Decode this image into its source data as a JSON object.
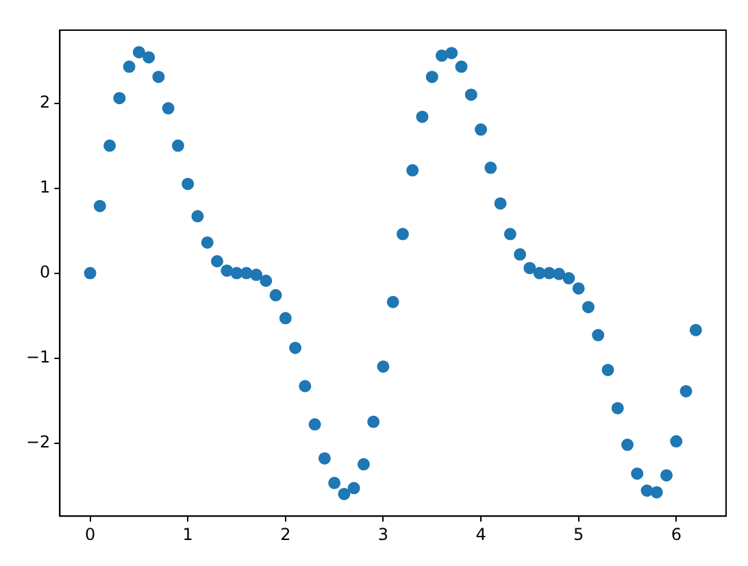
{
  "chart_data": {
    "type": "scatter",
    "x": [
      0,
      0.1,
      0.2,
      0.3,
      0.4,
      0.5,
      0.6,
      0.7,
      0.8,
      0.9,
      1.0,
      1.1,
      1.2,
      1.3,
      1.4,
      1.5,
      1.6,
      1.7,
      1.8,
      1.9,
      2.0,
      2.1,
      2.2,
      2.3,
      2.4,
      2.5,
      2.6,
      2.7,
      2.8,
      2.9,
      3.0,
      3.1,
      3.2,
      3.3,
      3.4,
      3.5,
      3.6,
      3.7,
      3.8,
      3.9,
      4.0,
      4.1,
      4.2,
      4.3,
      4.4,
      4.5,
      4.6,
      4.7,
      4.8,
      4.9,
      5.0,
      5.1,
      5.2,
      5.3,
      5.4,
      5.5,
      5.6,
      5.7,
      5.8,
      5.9,
      6.0,
      6.1,
      6.2
    ],
    "series": [
      {
        "color": "#1f77b4",
        "values": [
          0,
          0.79,
          1.5,
          2.06,
          2.43,
          2.6,
          2.54,
          2.31,
          1.94,
          1.5,
          1.05,
          0.67,
          0.36,
          0.14,
          0.03,
          0,
          0,
          -0.02,
          -0.09,
          -0.26,
          -0.53,
          -0.88,
          -1.33,
          -1.78,
          -2.18,
          -2.47,
          -2.6,
          -2.53,
          -2.25,
          -1.75,
          -1.1,
          -0.34,
          0.46,
          1.21,
          1.84,
          2.31,
          2.56,
          2.59,
          2.43,
          2.1,
          1.69,
          1.24,
          0.82,
          0.46,
          0.22,
          0.06,
          0,
          0,
          -0.01,
          -0.06,
          -0.18,
          -0.4,
          -0.73,
          -1.14,
          -1.59,
          -2.02,
          -2.36,
          -2.56,
          -2.58,
          -2.38,
          -1.98,
          -1.39,
          -0.67
        ]
      }
    ],
    "xlim": [
      -0.31,
      6.51
    ],
    "ylim": [
      -2.86,
      2.86
    ],
    "xticks": [
      0,
      1,
      2,
      3,
      4,
      5,
      6
    ],
    "yticks": [
      -2,
      -1,
      0,
      1,
      2
    ],
    "marker": "circle",
    "grid": false,
    "legend": false
  }
}
